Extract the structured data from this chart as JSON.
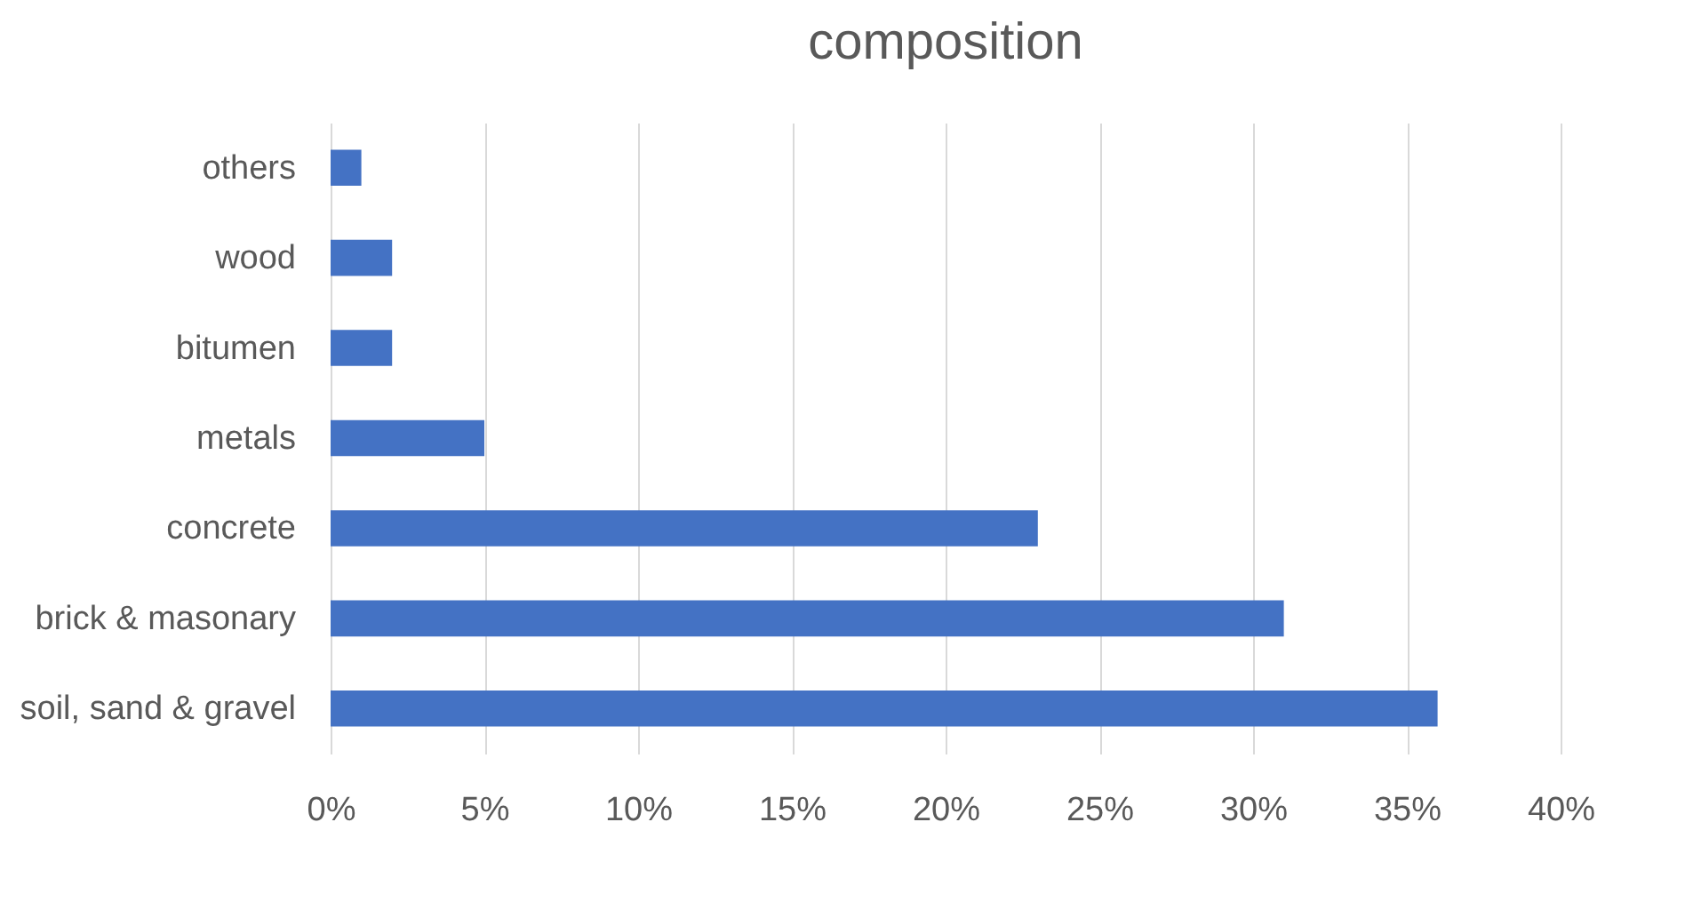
{
  "chart_data": {
    "type": "bar",
    "orientation": "horizontal",
    "title": "composition",
    "categories": [
      "others",
      "wood",
      "bitumen",
      "metals",
      "concrete",
      "brick & masonary",
      "soil, sand & gravel"
    ],
    "values": [
      1,
      2,
      2,
      5,
      23,
      31,
      36
    ],
    "color": "#4472c4",
    "xlim": [
      0,
      40
    ],
    "xticks": [
      {
        "value": 0,
        "label": "0%"
      },
      {
        "value": 5,
        "label": "5%"
      },
      {
        "value": 10,
        "label": "10%"
      },
      {
        "value": 15,
        "label": "15%"
      },
      {
        "value": 20,
        "label": "20%"
      },
      {
        "value": 25,
        "label": "25%"
      },
      {
        "value": 30,
        "label": "30%"
      },
      {
        "value": 35,
        "label": "35%"
      },
      {
        "value": 40,
        "label": "40%"
      }
    ],
    "grid": "x"
  }
}
